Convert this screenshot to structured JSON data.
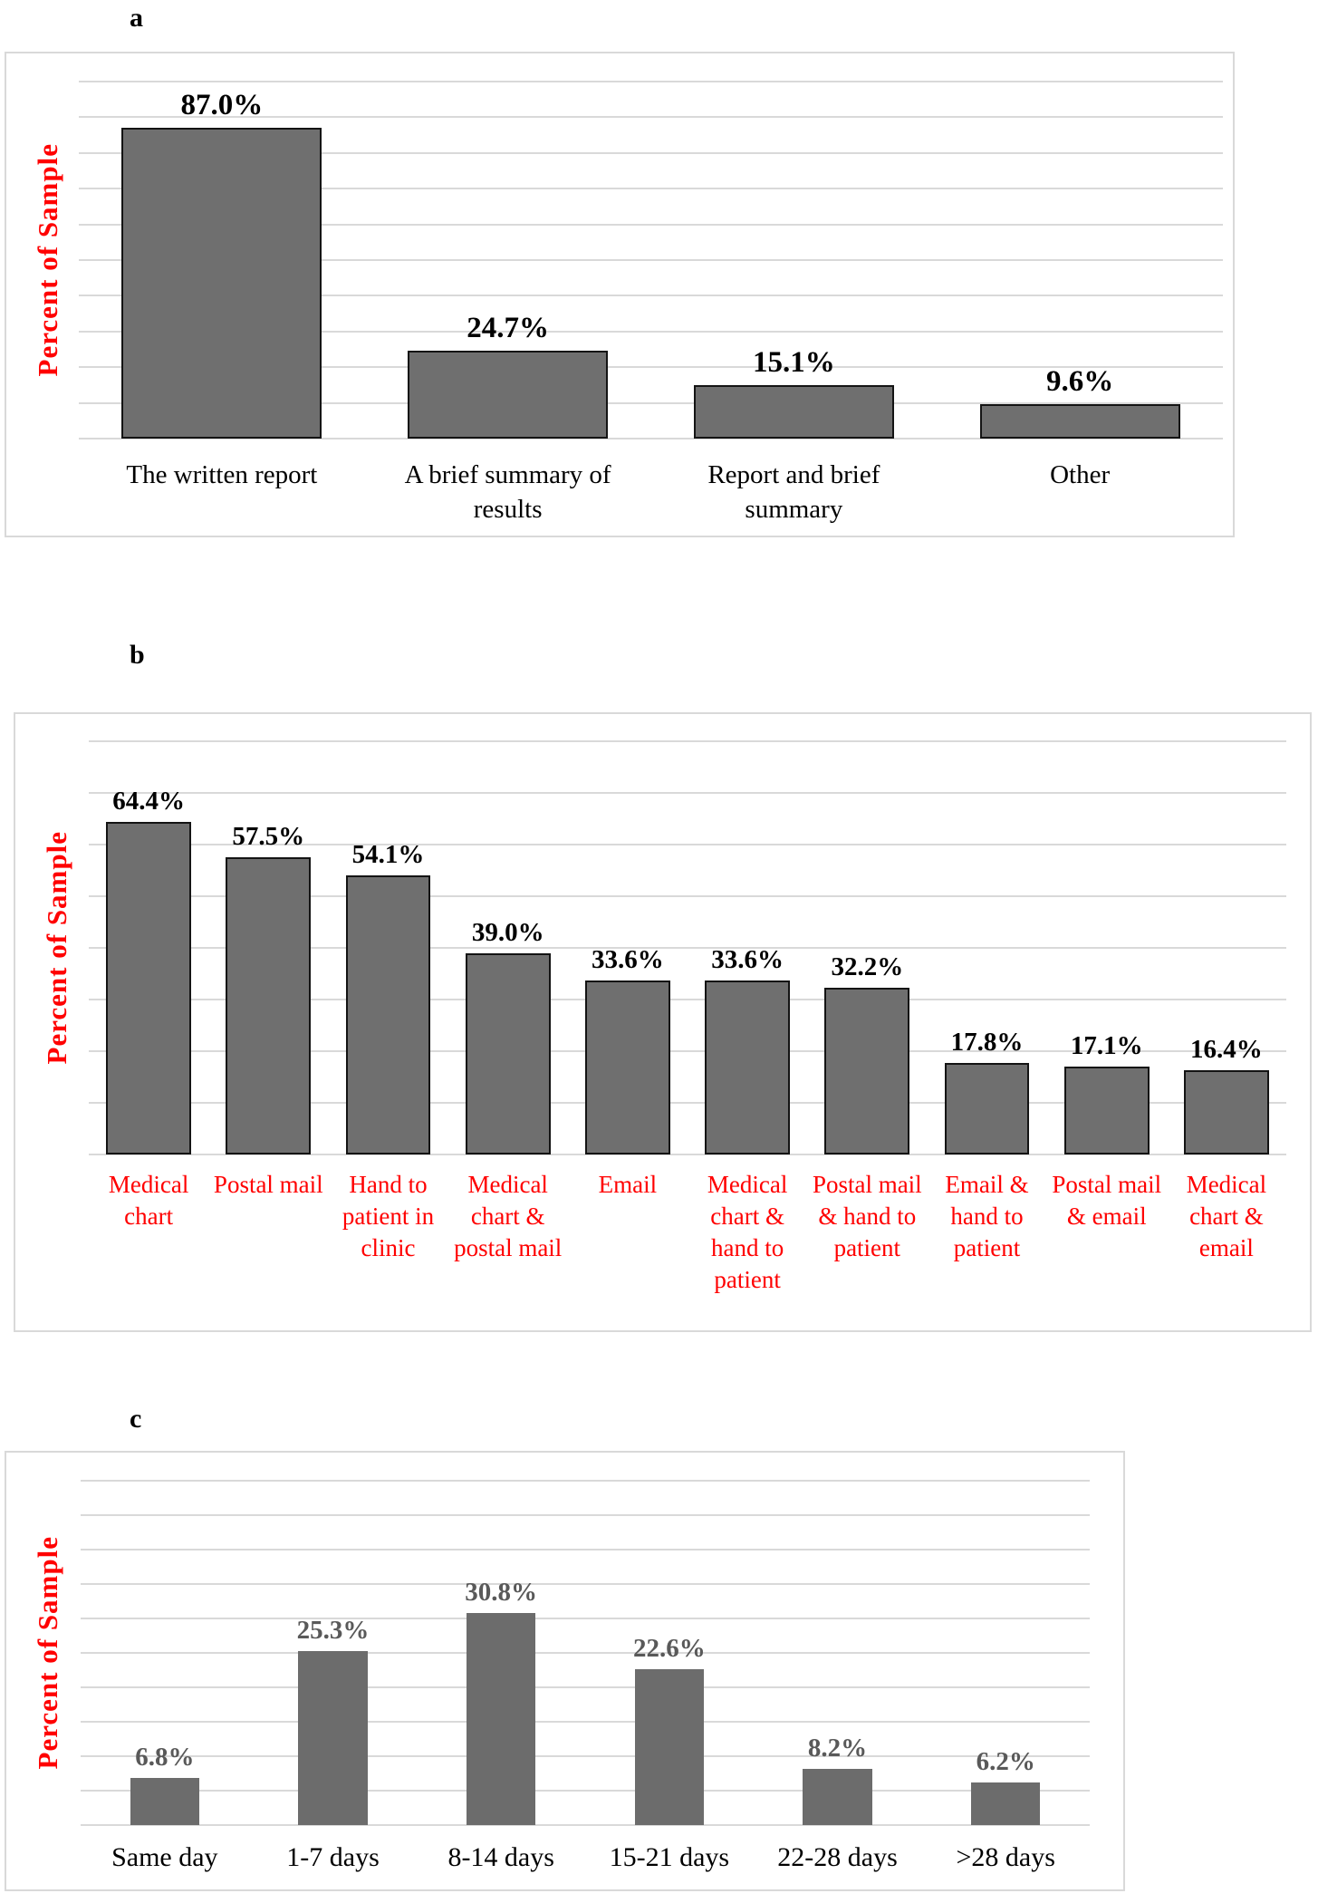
{
  "page": {
    "background": "#ffffff"
  },
  "chart_data": [
    {
      "panel_label": "a",
      "type": "bar",
      "title": "",
      "ylabel": "Percent of Sample",
      "xlabel": "",
      "categories": [
        "The written report",
        "A brief summary of results",
        "Report and brief summary",
        "Other"
      ],
      "values": [
        87.0,
        24.7,
        15.1,
        9.6
      ],
      "value_labels": [
        "87.0%",
        "24.7%",
        "15.1%",
        "9.6%"
      ],
      "ylim": [
        0,
        100
      ],
      "grid_step": 10,
      "grid": true,
      "legend_position": "none",
      "bar_color": "#6f6f6f",
      "bar_border_color": "#141414",
      "value_label_color": "#000000",
      "xlabel_color": "#000000",
      "ylabel_color": "#ff0000",
      "grid_color": "#d9d9d9"
    },
    {
      "panel_label": "b",
      "type": "bar",
      "title": "",
      "ylabel": "Percent of Sample",
      "xlabel": "",
      "categories": [
        "Medical chart",
        "Postal mail",
        "Hand to patient in clinic",
        "Medical chart & postal mail",
        "Email",
        "Medical chart & hand to patient",
        "Postal mail & hand to patient",
        "Email & hand to patient",
        "Postal mail & email",
        "Medical chart & email"
      ],
      "values": [
        64.4,
        57.5,
        54.1,
        39.0,
        33.6,
        33.6,
        32.2,
        17.8,
        17.1,
        16.4
      ],
      "value_labels": [
        "64.4%",
        "57.5%",
        "54.1%",
        "39.0%",
        "33.6%",
        "33.6%",
        "32.2%",
        "17.8%",
        "17.1%",
        "16.4%"
      ],
      "ylim": [
        0,
        80
      ],
      "grid_step": 10,
      "grid": true,
      "legend_position": "none",
      "bar_color": "#6f6f6f",
      "bar_border_color": "#141414",
      "value_label_color": "#000000",
      "xlabel_color": "#ff0000",
      "ylabel_color": "#ff0000",
      "grid_color": "#d9d9d9"
    },
    {
      "panel_label": "c",
      "type": "bar",
      "title": "",
      "ylabel": "Percent of Sample",
      "xlabel": "",
      "categories": [
        "Same day",
        "1-7 days",
        "8-14 days",
        "15-21 days",
        "22-28 days",
        ">28 days"
      ],
      "values": [
        6.8,
        25.3,
        30.8,
        22.6,
        8.2,
        6.2
      ],
      "value_labels": [
        "6.8%",
        "25.3%",
        "30.8%",
        "22.6%",
        "8.2%",
        "6.2%"
      ],
      "ylim": [
        0,
        50
      ],
      "grid_step": 5,
      "grid": true,
      "legend_position": "none",
      "bar_color": "#6c6c6c",
      "bar_border_color": null,
      "value_label_color": "#595959",
      "xlabel_color": "#000000",
      "ylabel_color": "#ff0000",
      "grid_color": "#d9d9d9"
    }
  ]
}
